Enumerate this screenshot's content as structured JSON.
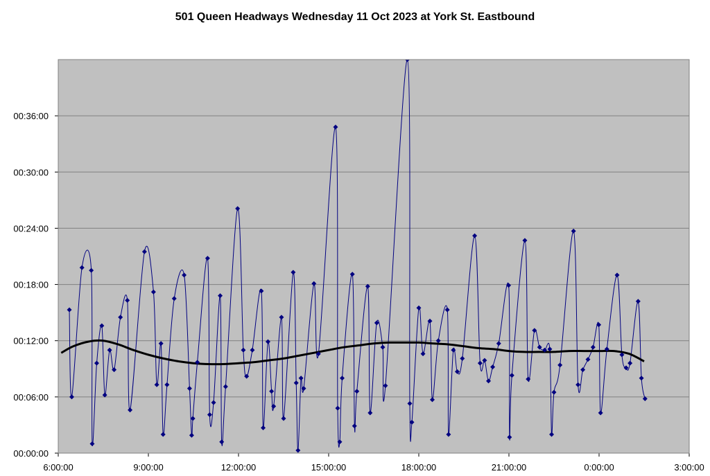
{
  "chart_data": {
    "type": "scatter",
    "title": "501 Queen Headways Wednesday 11 Oct 2023 at York St. Eastbound",
    "xlabel": "",
    "ylabel": "",
    "x_unit": "hours since 00:00 Wed 11 Oct 2023 (values >24 are after midnight)",
    "y_unit": "minutes",
    "xlim": [
      6,
      27
    ],
    "ylim": [
      0,
      42
    ],
    "grid": true,
    "legend": "none",
    "colors": {
      "plot_bg": "#c0c0c0",
      "series": "#000080",
      "trend": "#000000",
      "grid": "#808080"
    },
    "x_ticks": [
      {
        "value": 6,
        "label": "6:00:00"
      },
      {
        "value": 9,
        "label": "9:00:00"
      },
      {
        "value": 12,
        "label": "12:00:00"
      },
      {
        "value": 15,
        "label": "15:00:00"
      },
      {
        "value": 18,
        "label": "18:00:00"
      },
      {
        "value": 21,
        "label": "21:00:00"
      },
      {
        "value": 24,
        "label": "0:00:00"
      },
      {
        "value": 27,
        "label": "3:00:00"
      }
    ],
    "y_ticks": [
      {
        "value": 0,
        "label": "00:00:00"
      },
      {
        "value": 6,
        "label": "00:06:00"
      },
      {
        "value": 12,
        "label": "00:12:00"
      },
      {
        "value": 18,
        "label": "00:18:00"
      },
      {
        "value": 24,
        "label": "00:24:00"
      },
      {
        "value": 30,
        "label": "00:30:00"
      },
      {
        "value": 36,
        "label": "00:36:00"
      }
    ],
    "series": [
      {
        "points": [
          [
            6.37,
            15.3
          ],
          [
            6.45,
            6.0
          ],
          [
            6.79,
            19.8
          ],
          [
            7.1,
            19.5
          ],
          [
            7.13,
            1.0
          ],
          [
            7.28,
            9.6
          ],
          [
            7.45,
            13.6
          ],
          [
            7.55,
            6.2
          ],
          [
            7.71,
            11.0
          ],
          [
            7.86,
            8.9
          ],
          [
            8.07,
            14.5
          ],
          [
            8.3,
            16.3
          ],
          [
            8.39,
            4.6
          ],
          [
            8.87,
            21.5
          ],
          [
            9.17,
            17.2
          ],
          [
            9.28,
            7.3
          ],
          [
            9.42,
            11.7
          ],
          [
            9.49,
            2.0
          ],
          [
            9.62,
            7.3
          ],
          [
            9.86,
            16.5
          ],
          [
            10.19,
            19.0
          ],
          [
            10.37,
            6.9
          ],
          [
            10.44,
            1.9
          ],
          [
            10.48,
            3.7
          ],
          [
            10.63,
            9.7
          ],
          [
            10.97,
            20.8
          ],
          [
            11.04,
            4.1
          ],
          [
            11.17,
            5.4
          ],
          [
            11.39,
            16.8
          ],
          [
            11.44,
            1.2
          ],
          [
            11.57,
            7.1
          ],
          [
            11.97,
            26.1
          ],
          [
            12.16,
            11.0
          ],
          [
            12.27,
            8.2
          ],
          [
            12.46,
            11.0
          ],
          [
            12.76,
            17.3
          ],
          [
            12.82,
            2.7
          ],
          [
            12.98,
            11.9
          ],
          [
            13.1,
            6.6
          ],
          [
            13.17,
            5.0
          ],
          [
            13.43,
            14.5
          ],
          [
            13.5,
            3.7
          ],
          [
            13.82,
            19.3
          ],
          [
            13.92,
            7.5
          ],
          [
            13.98,
            0.3
          ],
          [
            14.08,
            8.0
          ],
          [
            14.17,
            6.9
          ],
          [
            14.51,
            18.1
          ],
          [
            14.66,
            10.6
          ],
          [
            15.23,
            34.8
          ],
          [
            15.3,
            4.8
          ],
          [
            15.37,
            1.2
          ],
          [
            15.45,
            8.0
          ],
          [
            15.79,
            19.1
          ],
          [
            15.86,
            2.9
          ],
          [
            15.94,
            6.6
          ],
          [
            16.3,
            17.8
          ],
          [
            16.38,
            4.3
          ],
          [
            16.6,
            13.9
          ],
          [
            16.8,
            11.3
          ],
          [
            16.89,
            7.2
          ],
          [
            17.62,
            42.0
          ],
          [
            17.7,
            5.3
          ],
          [
            17.77,
            3.3
          ],
          [
            18.0,
            15.5
          ],
          [
            18.14,
            10.6
          ],
          [
            18.37,
            14.1
          ],
          [
            18.45,
            5.7
          ],
          [
            18.65,
            12.0
          ],
          [
            18.95,
            15.3
          ],
          [
            18.99,
            2.0
          ],
          [
            19.15,
            11.0
          ],
          [
            19.28,
            8.7
          ],
          [
            19.45,
            10.1
          ],
          [
            19.86,
            23.2
          ],
          [
            20.04,
            9.6
          ],
          [
            20.19,
            9.9
          ],
          [
            20.32,
            7.7
          ],
          [
            20.46,
            9.2
          ],
          [
            20.66,
            11.7
          ],
          [
            20.99,
            17.9
          ],
          [
            21.02,
            1.7
          ],
          [
            21.1,
            8.3
          ],
          [
            21.53,
            22.7
          ],
          [
            21.64,
            7.9
          ],
          [
            21.85,
            13.1
          ],
          [
            22.02,
            11.3
          ],
          [
            22.19,
            11.0
          ],
          [
            22.36,
            11.1
          ],
          [
            22.42,
            2.0
          ],
          [
            22.5,
            6.5
          ],
          [
            22.7,
            9.4
          ],
          [
            23.15,
            23.7
          ],
          [
            23.3,
            7.3
          ],
          [
            23.46,
            8.9
          ],
          [
            23.63,
            10.0
          ],
          [
            23.8,
            11.3
          ],
          [
            23.99,
            13.7
          ],
          [
            24.05,
            4.3
          ],
          [
            24.26,
            11.1
          ],
          [
            24.6,
            19.0
          ],
          [
            24.76,
            10.5
          ],
          [
            24.9,
            9.1
          ],
          [
            25.03,
            9.6
          ],
          [
            25.3,
            16.2
          ],
          [
            25.41,
            8.0
          ],
          [
            25.53,
            5.8
          ]
        ]
      },
      {
        "points": [
          [
            6.1,
            10.7
          ],
          [
            6.5,
            11.4
          ],
          [
            7.0,
            11.9
          ],
          [
            7.5,
            12.0
          ],
          [
            8.0,
            11.6
          ],
          [
            8.5,
            11.0
          ],
          [
            9.0,
            10.5
          ],
          [
            9.5,
            10.1
          ],
          [
            10.0,
            9.8
          ],
          [
            10.5,
            9.6
          ],
          [
            11.0,
            9.5
          ],
          [
            11.5,
            9.5
          ],
          [
            12.0,
            9.6
          ],
          [
            12.5,
            9.7
          ],
          [
            13.0,
            9.9
          ],
          [
            13.5,
            10.1
          ],
          [
            14.0,
            10.4
          ],
          [
            14.5,
            10.7
          ],
          [
            15.0,
            11.0
          ],
          [
            15.5,
            11.3
          ],
          [
            16.0,
            11.5
          ],
          [
            16.5,
            11.7
          ],
          [
            17.0,
            11.8
          ],
          [
            17.5,
            11.8
          ],
          [
            18.0,
            11.8
          ],
          [
            18.5,
            11.7
          ],
          [
            19.0,
            11.6
          ],
          [
            19.5,
            11.4
          ],
          [
            20.0,
            11.2
          ],
          [
            20.5,
            11.1
          ],
          [
            21.0,
            10.9
          ],
          [
            21.5,
            10.8
          ],
          [
            22.0,
            10.8
          ],
          [
            22.5,
            10.8
          ],
          [
            23.0,
            10.9
          ],
          [
            23.5,
            10.9
          ],
          [
            24.0,
            10.9
          ],
          [
            24.5,
            10.9
          ],
          [
            25.0,
            10.6
          ],
          [
            25.5,
            9.8
          ]
        ]
      }
    ]
  }
}
